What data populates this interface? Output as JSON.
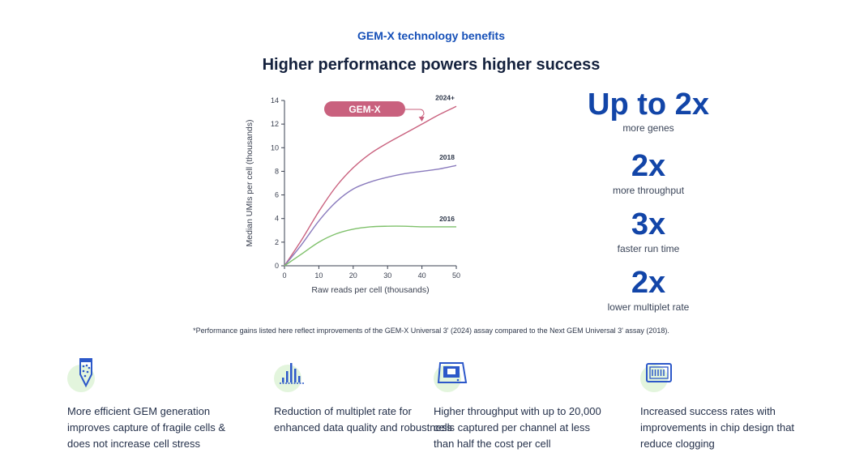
{
  "header": {
    "eyebrow": "GEM-X technology benefits",
    "title": "Higher performance powers higher success"
  },
  "chart_data": {
    "type": "line",
    "xlabel": "Raw reads per cell (thousands)",
    "ylabel": "Median UMIs per cell (thousands)",
    "xlim": [
      0,
      50
    ],
    "ylim": [
      0,
      14
    ],
    "xticks": [
      0,
      10,
      20,
      30,
      40,
      50
    ],
    "yticks": [
      0,
      2,
      4,
      6,
      8,
      10,
      12,
      14
    ],
    "grid": false,
    "annotation": "GEM-X",
    "series": [
      {
        "name": "2024+",
        "color": "#c9617e",
        "x": [
          0,
          5,
          10,
          15,
          20,
          25,
          30,
          35,
          40,
          45,
          50
        ],
        "y": [
          0,
          2.2,
          4.6,
          6.7,
          8.3,
          9.5,
          10.4,
          11.2,
          12.0,
          12.8,
          13.5
        ]
      },
      {
        "name": "2018",
        "color": "#8a7bbd",
        "x": [
          0,
          5,
          10,
          15,
          20,
          25,
          30,
          35,
          40,
          45,
          50
        ],
        "y": [
          0,
          1.8,
          3.8,
          5.4,
          6.5,
          7.1,
          7.5,
          7.8,
          8.0,
          8.2,
          8.5
        ]
      },
      {
        "name": "2016",
        "color": "#7fc16b",
        "x": [
          0,
          5,
          10,
          15,
          20,
          25,
          30,
          35,
          40,
          45,
          50
        ],
        "y": [
          0,
          1.0,
          2.0,
          2.7,
          3.1,
          3.3,
          3.35,
          3.35,
          3.3,
          3.3,
          3.3
        ]
      }
    ]
  },
  "stats": [
    {
      "value": "Up to 2x",
      "label": "more genes"
    },
    {
      "value": "2x",
      "label": "more throughput"
    },
    {
      "value": "3x",
      "label": "faster run time"
    },
    {
      "value": "2x",
      "label": "lower multiplet rate"
    }
  ],
  "footnote": "*Performance gains listed here reflect improvements of the GEM-X Universal 3' (2024) assay compared to the Next GEM Universal 3' assay (2018).",
  "features": [
    {
      "icon": "droplet-tube-icon",
      "text": "More efficient GEM generation improves capture of fragile cells & does not increase cell stress"
    },
    {
      "icon": "bar-chart-icon",
      "text": "Reduction of multiplet rate for enhanced data quality and robustness"
    },
    {
      "icon": "instrument-icon",
      "text": "Higher throughput with up to 20,000 cells captured per channel at less than half the cost per cell"
    },
    {
      "icon": "chip-icon",
      "text": "Increased success rates with improvements in chip design that reduce clogging"
    }
  ]
}
